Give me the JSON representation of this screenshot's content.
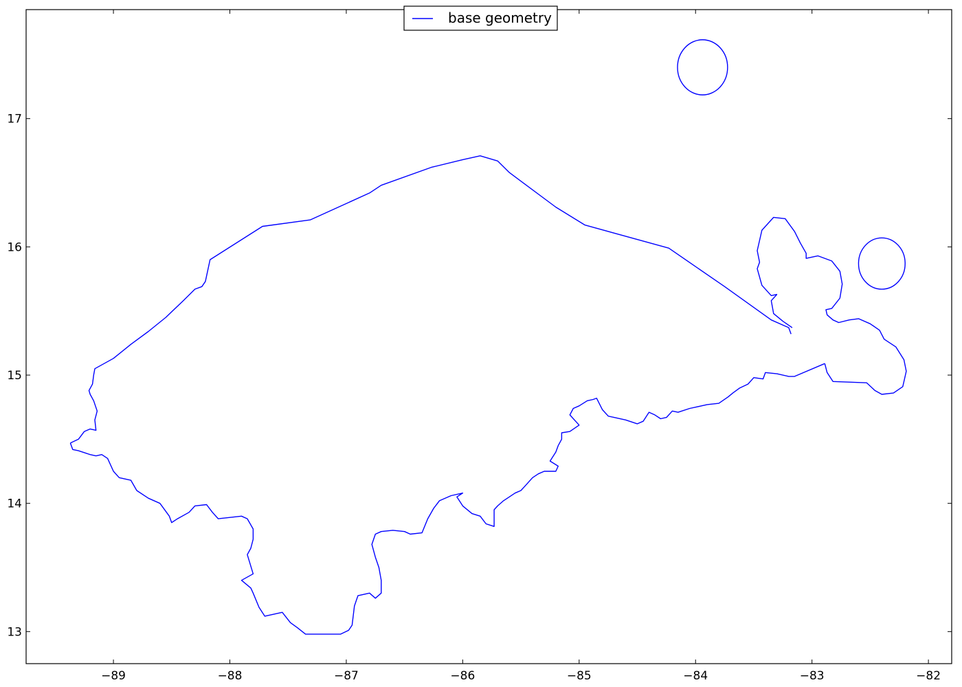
{
  "chart_data": {
    "type": "line",
    "title": "",
    "xlabel": "",
    "ylabel": "",
    "xlim": [
      -89.75,
      -81.8
    ],
    "ylim": [
      12.75,
      17.85
    ],
    "xticks": [
      -89,
      -88,
      -87,
      -86,
      -85,
      -84,
      -83,
      -82
    ],
    "xtick_labels": [
      "−89",
      "−88",
      "−87",
      "−86",
      "−85",
      "−84",
      "−83",
      "−82"
    ],
    "yticks": [
      13,
      14,
      15,
      16,
      17
    ],
    "ytick_labels": [
      "13",
      "14",
      "15",
      "16",
      "17"
    ],
    "grid": false,
    "legend_position": "top-center",
    "series": [
      {
        "name": "base geometry",
        "color": "#0000ff",
        "paths": [
          [
            [
              -89.37,
              14.47
            ],
            [
              -89.3,
              14.5
            ],
            [
              -89.25,
              14.56
            ],
            [
              -89.2,
              14.58
            ],
            [
              -89.15,
              14.57
            ],
            [
              -89.16,
              14.65
            ],
            [
              -89.14,
              14.72
            ],
            [
              -89.17,
              14.8
            ],
            [
              -89.2,
              14.85
            ],
            [
              -89.21,
              14.88
            ],
            [
              -89.18,
              14.93
            ],
            [
              -89.17,
              15.0
            ],
            [
              -89.16,
              15.05
            ],
            [
              -89.0,
              15.13
            ],
            [
              -88.85,
              15.24
            ],
            [
              -88.7,
              15.34
            ],
            [
              -88.55,
              15.45
            ],
            [
              -88.4,
              15.58
            ],
            [
              -88.3,
              15.67
            ],
            [
              -88.24,
              15.69
            ],
            [
              -88.21,
              15.73
            ],
            [
              -88.17,
              15.9
            ],
            [
              -87.72,
              16.16
            ],
            [
              -87.31,
              16.21
            ],
            [
              -86.8,
              16.42
            ],
            [
              -86.7,
              16.48
            ],
            [
              -86.27,
              16.62
            ],
            [
              -86.0,
              16.68
            ],
            [
              -85.85,
              16.71
            ],
            [
              -85.7,
              16.67
            ],
            [
              -85.6,
              16.58
            ],
            [
              -85.2,
              16.31
            ],
            [
              -84.95,
              16.17
            ],
            [
              -84.23,
              15.99
            ],
            [
              -83.75,
              15.69
            ],
            [
              -83.35,
              15.43
            ],
            [
              -83.2,
              15.37
            ],
            [
              -83.18,
              15.32
            ]
          ],
          [
            [
              -83.3,
              15.63
            ],
            [
              -83.35,
              15.62
            ],
            [
              -83.43,
              15.7
            ],
            [
              -83.47,
              15.83
            ],
            [
              -83.45,
              15.88
            ],
            [
              -83.47,
              15.97
            ],
            [
              -83.43,
              16.13
            ],
            [
              -83.33,
              16.23
            ],
            [
              -83.23,
              16.22
            ],
            [
              -83.15,
              16.12
            ],
            [
              -83.1,
              16.03
            ],
            [
              -83.05,
              15.95
            ],
            [
              -83.05,
              15.91
            ],
            [
              -82.95,
              15.93
            ],
            [
              -82.83,
              15.89
            ],
            [
              -82.76,
              15.81
            ],
            [
              -82.74,
              15.71
            ],
            [
              -82.76,
              15.6
            ],
            [
              -82.83,
              15.52
            ],
            [
              -82.88,
              15.51
            ],
            [
              -82.87,
              15.47
            ],
            [
              -82.82,
              15.43
            ],
            [
              -82.77,
              15.41
            ],
            [
              -82.68,
              15.43
            ],
            [
              -82.6,
              15.44
            ],
            [
              -82.5,
              15.4
            ],
            [
              -82.42,
              15.35
            ],
            [
              -82.38,
              15.28
            ],
            [
              -82.28,
              15.22
            ],
            [
              -82.21,
              15.12
            ],
            [
              -82.19,
              15.03
            ],
            [
              -82.22,
              14.91
            ],
            [
              -82.3,
              14.86
            ],
            [
              -82.4,
              14.85
            ],
            [
              -82.46,
              14.88
            ],
            [
              -82.53,
              14.94
            ],
            [
              -82.82,
              14.95
            ],
            [
              -82.87,
              15.02
            ],
            [
              -82.89,
              15.09
            ]
          ],
          [
            [
              -82.89,
              15.09
            ],
            [
              -83.15,
              14.99
            ],
            [
              -83.2,
              14.99
            ],
            [
              -83.3,
              15.01
            ],
            [
              -83.4,
              15.02
            ],
            [
              -83.42,
              14.97
            ],
            [
              -83.5,
              14.98
            ],
            [
              -83.55,
              14.93
            ],
            [
              -83.62,
              14.9
            ],
            [
              -83.68,
              14.86
            ],
            [
              -83.72,
              14.83
            ],
            [
              -83.8,
              14.78
            ],
            [
              -83.9,
              14.77
            ],
            [
              -83.95,
              14.76
            ],
            [
              -84.0,
              14.75
            ],
            [
              -84.05,
              14.74
            ],
            [
              -84.15,
              14.71
            ],
            [
              -84.2,
              14.72
            ],
            [
              -84.25,
              14.67
            ],
            [
              -84.3,
              14.66
            ],
            [
              -84.35,
              14.69
            ],
            [
              -84.4,
              14.71
            ],
            [
              -84.45,
              14.64
            ],
            [
              -84.5,
              14.62
            ],
            [
              -84.6,
              14.65
            ],
            [
              -84.7,
              14.67
            ],
            [
              -84.75,
              14.68
            ],
            [
              -84.8,
              14.73
            ],
            [
              -84.85,
              14.82
            ],
            [
              -84.88,
              14.81
            ],
            [
              -84.93,
              14.8
            ],
            [
              -85.0,
              14.76
            ],
            [
              -85.05,
              14.74
            ],
            [
              -85.08,
              14.69
            ],
            [
              -85.0,
              14.61
            ],
            [
              -85.08,
              14.56
            ],
            [
              -85.15,
              14.55
            ],
            [
              -85.15,
              14.5
            ],
            [
              -85.18,
              14.45
            ],
            [
              -85.2,
              14.4
            ],
            [
              -85.25,
              14.33
            ],
            [
              -85.18,
              14.29
            ],
            [
              -85.2,
              14.25
            ],
            [
              -85.3,
              14.25
            ],
            [
              -85.35,
              14.23
            ],
            [
              -85.4,
              14.2
            ],
            [
              -85.45,
              14.15
            ],
            [
              -85.5,
              14.1
            ],
            [
              -85.55,
              14.08
            ],
            [
              -85.6,
              14.05
            ],
            [
              -85.65,
              14.02
            ],
            [
              -85.7,
              13.98
            ],
            [
              -85.73,
              13.95
            ],
            [
              -85.73,
              13.82
            ],
            [
              -85.8,
              13.84
            ],
            [
              -85.85,
              13.9
            ],
            [
              -85.92,
              13.92
            ],
            [
              -86.0,
              13.98
            ],
            [
              -86.05,
              14.05
            ],
            [
              -86.0,
              14.08
            ],
            [
              -86.1,
              14.06
            ],
            [
              -86.2,
              14.02
            ],
            [
              -86.25,
              13.96
            ],
            [
              -86.3,
              13.88
            ],
            [
              -86.35,
              13.77
            ],
            [
              -86.45,
              13.76
            ],
            [
              -86.5,
              13.78
            ],
            [
              -86.6,
              13.79
            ],
            [
              -86.7,
              13.78
            ],
            [
              -86.75,
              13.76
            ],
            [
              -86.78,
              13.68
            ],
            [
              -86.75,
              13.58
            ],
            [
              -86.72,
              13.5
            ],
            [
              -86.7,
              13.4
            ],
            [
              -86.7,
              13.3
            ],
            [
              -86.75,
              13.26
            ],
            [
              -86.8,
              13.3
            ],
            [
              -86.9,
              13.28
            ],
            [
              -86.93,
              13.2
            ],
            [
              -86.95,
              13.05
            ],
            [
              -86.98,
              13.01
            ],
            [
              -87.05,
              12.98
            ],
            [
              -87.35,
              12.98
            ],
            [
              -87.42,
              13.03
            ],
            [
              -87.48,
              13.07
            ],
            [
              -87.55,
              13.15
            ],
            [
              -87.7,
              13.12
            ],
            [
              -87.75,
              13.19
            ],
            [
              -87.8,
              13.3
            ],
            [
              -87.82,
              13.34
            ],
            [
              -87.9,
              13.4
            ],
            [
              -87.8,
              13.45
            ],
            [
              -87.85,
              13.6
            ],
            [
              -87.82,
              13.65
            ],
            [
              -87.8,
              13.72
            ],
            [
              -87.8,
              13.8
            ],
            [
              -87.85,
              13.88
            ],
            [
              -87.9,
              13.9
            ],
            [
              -88.1,
              13.88
            ],
            [
              -88.15,
              13.93
            ],
            [
              -88.2,
              13.99
            ],
            [
              -88.3,
              13.98
            ],
            [
              -88.35,
              13.93
            ],
            [
              -88.45,
              13.88
            ],
            [
              -88.5,
              13.85
            ],
            [
              -88.52,
              13.9
            ],
            [
              -88.6,
              14.0
            ],
            [
              -88.7,
              14.04
            ],
            [
              -88.8,
              14.1
            ],
            [
              -88.85,
              14.18
            ],
            [
              -88.95,
              14.2
            ],
            [
              -89.0,
              14.25
            ],
            [
              -89.05,
              14.35
            ],
            [
              -89.1,
              14.38
            ],
            [
              -89.15,
              14.37
            ],
            [
              -89.2,
              14.38
            ],
            [
              -89.3,
              14.41
            ],
            [
              -89.35,
              14.42
            ],
            [
              -89.37,
              14.47
            ]
          ],
          [
            [
              -83.3,
              15.63
            ],
            [
              -83.35,
              15.58
            ],
            [
              -83.33,
              15.48
            ],
            [
              -83.25,
              15.42
            ],
            [
              -83.17,
              15.37
            ]
          ]
        ],
        "circles": [
          {
            "cx": -83.94,
            "cy": 17.4,
            "r": 0.215
          },
          {
            "cx": -82.4,
            "cy": 15.87,
            "r": 0.2
          }
        ]
      }
    ]
  }
}
